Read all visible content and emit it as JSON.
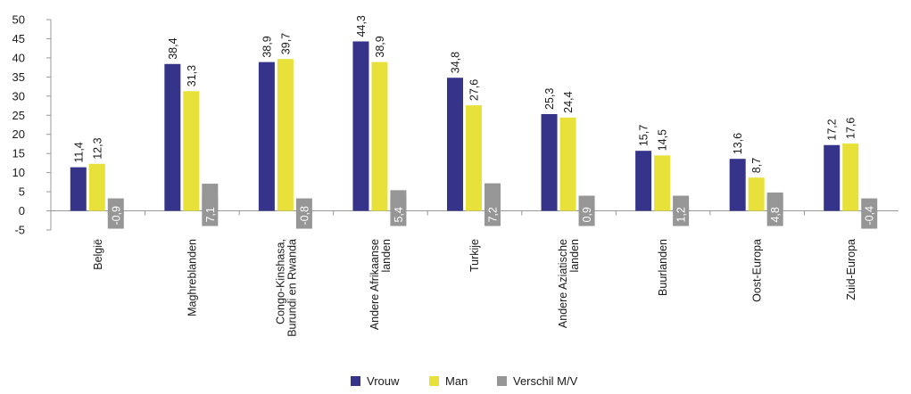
{
  "colors": {
    "vrouw": "#35348a",
    "man": "#e8e13a",
    "verschil": "#969696",
    "axis": "#999999"
  },
  "chart_data": {
    "type": "bar",
    "categories": [
      [
        "België"
      ],
      [
        "Maghreblanden"
      ],
      [
        "Congo-Kinshasa,",
        "Burundi en Rwanda"
      ],
      [
        "Andere Afrikaanse",
        "landen"
      ],
      [
        "Turkije"
      ],
      [
        "Andere Aziatische",
        "landen"
      ],
      [
        "Buurlanden"
      ],
      [
        "Oost-Europa"
      ],
      [
        "Zuid-Europa"
      ]
    ],
    "series": [
      {
        "name": "Vrouw",
        "values": [
          11.4,
          38.4,
          38.9,
          44.3,
          34.8,
          25.3,
          15.7,
          13.6,
          17.2
        ]
      },
      {
        "name": "Man",
        "values": [
          12.3,
          31.3,
          39.7,
          38.9,
          27.6,
          24.4,
          14.5,
          8.7,
          17.6
        ]
      },
      {
        "name": "Verschil M/V",
        "values": [
          -0.9,
          7.1,
          -0.8,
          5.4,
          7.2,
          0.9,
          1.2,
          4.8,
          -0.4
        ]
      }
    ],
    "value_labels": [
      [
        "11,4",
        "38,4",
        "38,9",
        "44,3",
        "34,8",
        "25,3",
        "15,7",
        "13,6",
        "17,2"
      ],
      [
        "12,3",
        "31,3",
        "39,7",
        "38,9",
        "27,6",
        "24,4",
        "14,5",
        "8,7",
        "17,6"
      ],
      [
        "-0,9",
        "7,1",
        "-0,8",
        "5,4",
        "7,2",
        "0,9",
        "1,2",
        "4,8",
        "-0,4"
      ]
    ],
    "yticks": [
      50,
      45,
      40,
      35,
      30,
      25,
      20,
      15,
      10,
      5,
      0,
      -5
    ],
    "ylim": [
      -5,
      50
    ],
    "grid": false,
    "legend_position": "bottom",
    "title": "",
    "xlabel": "",
    "ylabel": ""
  }
}
